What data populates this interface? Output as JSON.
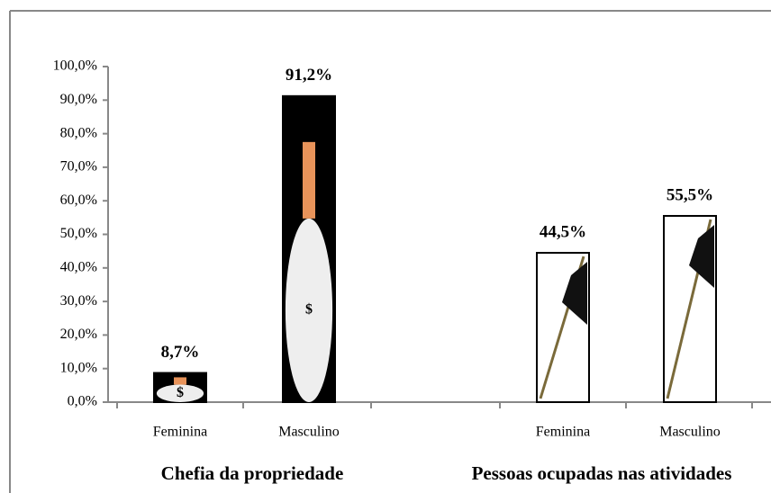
{
  "chart_data": {
    "type": "bar",
    "categories": [
      "Feminina",
      "Masculino",
      "Feminina",
      "Masculino"
    ],
    "groups": [
      "Chefia da propriedade",
      "Pessoas ocupadas nas atividades"
    ],
    "values": [
      8.7,
      91.2,
      44.5,
      55.5
    ],
    "value_labels": [
      "8,7%",
      "91,2%",
      "44,5%",
      "55,5%"
    ],
    "ylim": [
      0,
      100
    ],
    "yticks": [
      {
        "value": 0,
        "label": "0,0%"
      },
      {
        "value": 10,
        "label": "10,0%"
      },
      {
        "value": 20,
        "label": "20,0%"
      },
      {
        "value": 30,
        "label": "30,0%"
      },
      {
        "value": 40,
        "label": "40,0%"
      },
      {
        "value": 50,
        "label": "50,0%"
      },
      {
        "value": 60,
        "label": "60,0%"
      },
      {
        "value": 70,
        "label": "70,0%"
      },
      {
        "value": 80,
        "label": "80,0%"
      },
      {
        "value": 90,
        "label": "90,0%"
      },
      {
        "value": 100,
        "label": "100,0%"
      }
    ]
  }
}
